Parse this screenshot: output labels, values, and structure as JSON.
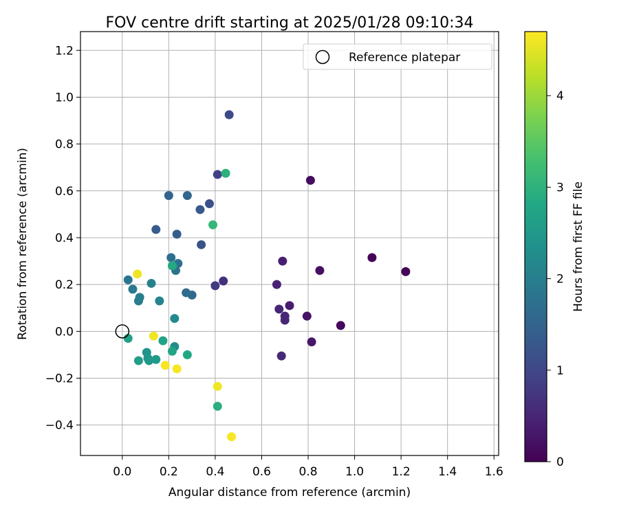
{
  "chart_data": {
    "type": "scatter",
    "title": "FOV centre drift starting at 2025/01/28 09:10:34",
    "xlabel": "Angular distance from reference (arcmin)",
    "ylabel": "Rotation from reference (arcmin)",
    "xlim": [
      -0.18,
      1.62
    ],
    "ylim": [
      -0.53,
      1.28
    ],
    "xticks": [
      0.0,
      0.2,
      0.4,
      0.6,
      0.8,
      1.0,
      1.2,
      1.4,
      1.6
    ],
    "xtick_labels": [
      "0.0",
      "0.2",
      "0.4",
      "0.6",
      "0.8",
      "1.0",
      "1.2",
      "1.4",
      "1.6"
    ],
    "yticks": [
      -0.4,
      -0.2,
      0.0,
      0.2,
      0.4,
      0.6,
      0.8,
      1.0,
      1.2
    ],
    "ytick_labels": [
      "−0.4",
      "−0.2",
      "0.0",
      "0.2",
      "0.4",
      "0.6",
      "0.8",
      "1.0",
      "1.2"
    ],
    "grid": true,
    "legend": {
      "placement": "top-right",
      "entries": [
        "Reference platepar"
      ]
    },
    "reference_point": {
      "x": 0.0,
      "y": 0.0
    },
    "colorbar": {
      "label": "Hours from first FF file",
      "range": [
        0,
        4.7
      ],
      "ticks": [
        0,
        1,
        2,
        3,
        4
      ],
      "tick_labels": [
        "0",
        "1",
        "2",
        "3",
        "4"
      ],
      "colormap": "viridis"
    },
    "points": [
      {
        "x": 1.22,
        "y": 0.255,
        "h": 0.05
      },
      {
        "x": 1.075,
        "y": 0.315,
        "h": 0.05
      },
      {
        "x": 0.94,
        "y": 0.025,
        "h": 0.1
      },
      {
        "x": 0.81,
        "y": 0.645,
        "h": 0.15
      },
      {
        "x": 0.85,
        "y": 0.26,
        "h": 0.2
      },
      {
        "x": 0.795,
        "y": 0.065,
        "h": 0.25
      },
      {
        "x": 0.815,
        "y": -0.045,
        "h": 0.3
      },
      {
        "x": 0.72,
        "y": 0.11,
        "h": 0.35
      },
      {
        "x": 0.69,
        "y": 0.3,
        "h": 0.4
      },
      {
        "x": 0.665,
        "y": 0.2,
        "h": 0.45
      },
      {
        "x": 0.675,
        "y": 0.095,
        "h": 0.5
      },
      {
        "x": 0.7,
        "y": 0.065,
        "h": 0.5
      },
      {
        "x": 0.7,
        "y": 0.048,
        "h": 0.5
      },
      {
        "x": 0.685,
        "y": -0.105,
        "h": 0.55
      },
      {
        "x": 0.435,
        "y": 0.215,
        "h": 0.65
      },
      {
        "x": 0.4,
        "y": 0.195,
        "h": 0.8
      },
      {
        "x": 0.41,
        "y": 0.67,
        "h": 0.9
      },
      {
        "x": 0.46,
        "y": 0.925,
        "h": 1.05
      },
      {
        "x": 0.375,
        "y": 0.545,
        "h": 1.15
      },
      {
        "x": 0.34,
        "y": 0.37,
        "h": 1.2
      },
      {
        "x": 0.335,
        "y": 0.52,
        "h": 1.3
      },
      {
        "x": 0.145,
        "y": 0.435,
        "h": 1.35
      },
      {
        "x": 0.235,
        "y": 0.415,
        "h": 1.4
      },
      {
        "x": 0.2,
        "y": 0.58,
        "h": 1.5
      },
      {
        "x": 0.28,
        "y": 0.58,
        "h": 1.55
      },
      {
        "x": 0.3,
        "y": 0.155,
        "h": 1.6
      },
      {
        "x": 0.275,
        "y": 0.165,
        "h": 1.65
      },
      {
        "x": 0.21,
        "y": 0.315,
        "h": 1.7
      },
      {
        "x": 0.24,
        "y": 0.29,
        "h": 1.75
      },
      {
        "x": 0.23,
        "y": 0.26,
        "h": 1.8
      },
      {
        "x": 0.025,
        "y": 0.22,
        "h": 1.85
      },
      {
        "x": 0.045,
        "y": 0.18,
        "h": 1.9
      },
      {
        "x": 0.07,
        "y": 0.13,
        "h": 1.95
      },
      {
        "x": 0.075,
        "y": 0.145,
        "h": 2.0
      },
      {
        "x": 0.125,
        "y": 0.205,
        "h": 2.05
      },
      {
        "x": 0.16,
        "y": 0.13,
        "h": 2.1
      },
      {
        "x": 0.225,
        "y": 0.055,
        "h": 2.2
      },
      {
        "x": 0.225,
        "y": -0.065,
        "h": 2.3
      },
      {
        "x": 0.105,
        "y": -0.09,
        "h": 2.4
      },
      {
        "x": 0.11,
        "y": -0.115,
        "h": 2.45
      },
      {
        "x": 0.115,
        "y": -0.125,
        "h": 2.5
      },
      {
        "x": 0.145,
        "y": -0.12,
        "h": 2.55
      },
      {
        "x": 0.07,
        "y": -0.125,
        "h": 2.6
      },
      {
        "x": 0.025,
        "y": -0.03,
        "h": 2.65
      },
      {
        "x": 0.175,
        "y": -0.04,
        "h": 2.7
      },
      {
        "x": 0.215,
        "y": -0.085,
        "h": 2.75
      },
      {
        "x": 0.28,
        "y": -0.1,
        "h": 2.8
      },
      {
        "x": 0.215,
        "y": 0.28,
        "h": 2.85
      },
      {
        "x": 0.41,
        "y": -0.32,
        "h": 2.95
      },
      {
        "x": 0.39,
        "y": 0.455,
        "h": 3.1
      },
      {
        "x": 0.445,
        "y": 0.675,
        "h": 3.0
      },
      {
        "x": 0.065,
        "y": 0.245,
        "h": 4.6
      },
      {
        "x": 0.135,
        "y": -0.02,
        "h": 4.6
      },
      {
        "x": 0.185,
        "y": -0.145,
        "h": 4.65
      },
      {
        "x": 0.235,
        "y": -0.16,
        "h": 4.65
      },
      {
        "x": 0.41,
        "y": -0.235,
        "h": 4.6
      },
      {
        "x": 0.47,
        "y": -0.45,
        "h": 4.65
      }
    ]
  }
}
